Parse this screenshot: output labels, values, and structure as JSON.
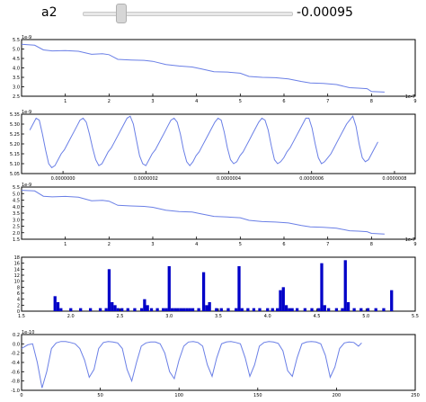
{
  "slider": {
    "label": "a2",
    "value_text": "-0.00095"
  },
  "colors": {
    "line": "#6a7fe6",
    "bar": "#0000c8",
    "frame": "#000000",
    "slider_track": "#e8e8e8",
    "slider_handle": "#d6d6d6"
  },
  "chart_data": [
    {
      "type": "line",
      "title": "",
      "offset_text": "1e-9",
      "x_offset_text": "1e-7",
      "xlim": [
        0,
        9
      ],
      "ylim": [
        2.5,
        5.5
      ],
      "xticks": [
        "1",
        "2",
        "3",
        "4",
        "5",
        "6",
        "7",
        "8",
        "9"
      ],
      "yticks": [
        "2.5",
        "3.0",
        "3.5",
        "4.0",
        "4.5",
        "5.0",
        "5.5"
      ],
      "series": [
        {
          "x": [
            0,
            0.3,
            0.5,
            0.7,
            1.0,
            1.3,
            1.6,
            1.85,
            2.0,
            2.2,
            2.5,
            2.8,
            3.0,
            3.3,
            3.6,
            3.9,
            4.1,
            4.4,
            4.7,
            5.0,
            5.2,
            5.5,
            5.8,
            6.1,
            6.4,
            6.6,
            6.9,
            7.2,
            7.5,
            7.7,
            7.9,
            8.0,
            8.3
          ],
          "y": [
            5.25,
            5.2,
            4.95,
            4.9,
            4.92,
            4.88,
            4.72,
            4.75,
            4.7,
            4.45,
            4.42,
            4.4,
            4.35,
            4.18,
            4.1,
            4.05,
            3.95,
            3.8,
            3.78,
            3.72,
            3.55,
            3.5,
            3.48,
            3.42,
            3.28,
            3.2,
            3.18,
            3.12,
            2.95,
            2.93,
            2.9,
            2.75,
            2.72
          ]
        }
      ]
    },
    {
      "type": "line",
      "title": "",
      "offset_text": "1e-9",
      "xlim": [
        -1e-07,
        8.5e-07
      ],
      "ylim": [
        5.05,
        5.35
      ],
      "xticks": [
        "0.0000000",
        "0.0000002",
        "0.0000004",
        "0.0000006",
        "0.0000008"
      ],
      "xtick_values": [
        0,
        2e-07,
        4e-07,
        6e-07,
        8e-07
      ],
      "yticks": [
        "5.05",
        "5.10",
        "5.15",
        "5.20",
        "5.25",
        "5.30",
        "5.35"
      ],
      "series": [
        {
          "x_start": -8e-08,
          "period": 1e-07,
          "cycles": 8.4,
          "y": [
            5.27,
            5.3,
            5.33,
            5.32,
            5.25,
            5.17,
            5.1,
            5.08,
            5.09,
            5.12,
            5.15,
            5.17,
            5.2,
            5.23,
            5.26,
            5.29,
            5.32,
            5.33,
            5.31,
            5.25,
            5.18,
            5.12,
            5.09,
            5.1,
            5.13,
            5.16,
            5.18,
            5.21,
            5.24,
            5.27,
            5.3,
            5.33,
            5.34,
            5.3,
            5.22,
            5.14,
            5.1,
            5.09,
            5.12,
            5.15,
            5.17,
            5.2,
            5.23,
            5.26,
            5.29,
            5.32,
            5.33,
            5.31,
            5.25,
            5.17,
            5.11,
            5.09,
            5.11,
            5.14,
            5.16,
            5.19,
            5.22,
            5.25,
            5.28,
            5.31,
            5.33,
            5.32,
            5.26,
            5.18,
            5.12,
            5.1,
            5.11,
            5.14,
            5.16,
            5.19,
            5.22,
            5.25,
            5.28,
            5.31,
            5.33,
            5.32,
            5.27,
            5.19,
            5.12,
            5.1,
            5.11,
            5.13,
            5.16,
            5.18,
            5.21,
            5.24,
            5.27,
            5.3,
            5.33,
            5.33,
            5.28,
            5.2,
            5.13,
            5.1,
            5.11,
            5.13,
            5.15,
            5.18,
            5.21,
            5.24,
            5.27,
            5.3,
            5.32,
            5.34,
            5.29,
            5.2,
            5.13,
            5.11,
            5.12,
            5.15,
            5.18,
            5.21
          ]
        }
      ]
    },
    {
      "type": "line",
      "title": "",
      "offset_text": "1e-9",
      "x_offset_text": "1e-7",
      "xlim": [
        0,
        9
      ],
      "ylim": [
        1.5,
        5.5
      ],
      "xticks": [
        "1",
        "2",
        "3",
        "4",
        "5",
        "6",
        "7",
        "8",
        "9"
      ],
      "yticks": [
        "1.5",
        "2.0",
        "2.5",
        "3.0",
        "3.5",
        "4.0",
        "4.5",
        "5.0",
        "5.5"
      ],
      "series": [
        {
          "x": [
            0,
            0.3,
            0.5,
            0.7,
            1.0,
            1.3,
            1.6,
            1.85,
            2.0,
            2.2,
            2.5,
            2.8,
            3.0,
            3.3,
            3.6,
            3.9,
            4.1,
            4.4,
            4.7,
            5.0,
            5.2,
            5.5,
            5.8,
            6.1,
            6.4,
            6.6,
            6.9,
            7.2,
            7.5,
            7.7,
            7.9,
            8.0,
            8.3
          ],
          "y": [
            5.25,
            5.2,
            4.8,
            4.75,
            4.78,
            4.72,
            4.45,
            4.48,
            4.42,
            4.1,
            4.05,
            4.02,
            3.95,
            3.72,
            3.62,
            3.58,
            3.45,
            3.25,
            3.2,
            3.15,
            2.95,
            2.85,
            2.82,
            2.75,
            2.55,
            2.45,
            2.42,
            2.35,
            2.15,
            2.12,
            2.08,
            1.95,
            1.9
          ]
        }
      ]
    },
    {
      "type": "bar",
      "title": "",
      "xlim": [
        1.5,
        5.5
      ],
      "ylim": [
        0,
        18
      ],
      "xticks": [
        "1.5",
        "2.0",
        "2.5",
        "3.0",
        "3.5",
        "4.0",
        "4.5",
        "5.0",
        "5.5"
      ],
      "yticks": [
        "0",
        "2",
        "4",
        "6",
        "8",
        "10",
        "12",
        "14",
        "16",
        "18"
      ],
      "bar_width": 0.03,
      "x": [
        1.84,
        1.87,
        1.9,
        2.0,
        2.1,
        2.2,
        2.3,
        2.36,
        2.39,
        2.42,
        2.45,
        2.48,
        2.52,
        2.58,
        2.65,
        2.72,
        2.75,
        2.78,
        2.82,
        2.88,
        2.94,
        2.97,
        3.0,
        3.03,
        3.06,
        3.09,
        3.12,
        3.15,
        3.18,
        3.21,
        3.24,
        3.3,
        3.35,
        3.38,
        3.41,
        3.48,
        3.53,
        3.6,
        3.68,
        3.71,
        3.74,
        3.8,
        3.86,
        3.92,
        4.0,
        4.05,
        4.1,
        4.13,
        4.16,
        4.19,
        4.22,
        4.25,
        4.3,
        4.38,
        4.45,
        4.52,
        4.55,
        4.58,
        4.62,
        4.7,
        4.76,
        4.79,
        4.82,
        4.88,
        4.95,
        5.02,
        5.1,
        5.18,
        5.26
      ],
      "values": [
        5,
        3,
        1,
        1,
        1,
        1,
        1,
        1,
        14,
        3,
        2,
        1,
        1,
        1,
        1,
        1,
        4,
        2,
        1,
        1,
        1,
        1,
        15,
        1,
        1,
        1,
        1,
        1,
        1,
        1,
        1,
        1,
        13,
        2,
        3,
        1,
        1,
        1,
        1,
        15,
        1,
        1,
        1,
        1,
        1,
        1,
        1,
        7,
        8,
        2,
        1,
        1,
        1,
        1,
        1,
        1,
        16,
        2,
        1,
        1,
        1,
        17,
        3,
        1,
        1,
        1,
        1,
        1,
        7
      ]
    },
    {
      "type": "line",
      "title": "",
      "offset_text": "1e-10",
      "xlim": [
        0,
        250
      ],
      "ylim": [
        -1.0,
        0.2
      ],
      "xticks": [
        "0",
        "50",
        "100",
        "150",
        "200",
        "250"
      ],
      "yticks": [
        "-1.0",
        "-0.8",
        "-0.6",
        "-0.4",
        "-0.2",
        "0.0",
        "0.2"
      ],
      "series": [
        {
          "x": [
            0,
            4,
            7,
            10,
            13,
            16,
            19,
            22,
            25,
            28,
            31,
            34,
            37,
            40,
            43,
            46,
            49,
            52,
            55,
            58,
            61,
            64,
            67,
            70,
            73,
            76,
            79,
            82,
            85,
            88,
            91,
            94,
            97,
            100,
            103,
            106,
            109,
            112,
            115,
            118,
            121,
            124,
            127,
            130,
            133,
            136,
            139,
            142,
            145,
            148,
            151,
            154,
            157,
            160,
            163,
            166,
            169,
            172,
            175,
            178,
            181,
            184,
            187,
            190,
            193,
            196,
            199,
            202,
            205,
            208,
            211,
            214,
            216
          ],
          "y": [
            -0.1,
            -0.02,
            0.0,
            -0.4,
            -0.95,
            -0.6,
            -0.1,
            0.02,
            0.05,
            0.05,
            0.03,
            0.0,
            -0.1,
            -0.35,
            -0.72,
            -0.55,
            -0.1,
            0.03,
            0.05,
            0.04,
            0.02,
            -0.1,
            -0.55,
            -0.8,
            -0.4,
            -0.05,
            0.02,
            0.04,
            0.04,
            0.0,
            -0.2,
            -0.6,
            -0.75,
            -0.35,
            -0.05,
            0.04,
            0.05,
            0.03,
            -0.05,
            -0.45,
            -0.7,
            -0.3,
            0.0,
            0.04,
            0.05,
            0.03,
            0.0,
            -0.3,
            -0.7,
            -0.45,
            -0.05,
            0.03,
            0.05,
            0.04,
            0.01,
            -0.15,
            -0.58,
            -0.7,
            -0.3,
            0.0,
            0.04,
            0.05,
            0.04,
            0.0,
            -0.25,
            -0.72,
            -0.5,
            -0.1,
            0.02,
            0.04,
            0.03,
            -0.05,
            0.02
          ]
        }
      ]
    }
  ]
}
